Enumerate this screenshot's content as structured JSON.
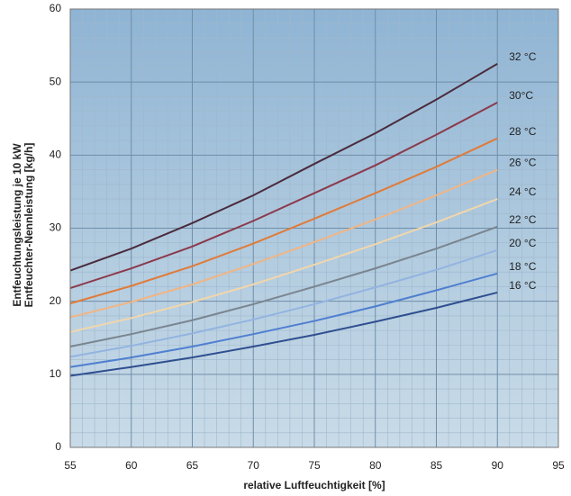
{
  "chart_data": {
    "type": "line",
    "x_label": "relative Luftfeuchtigkeit [%]",
    "y_label": [
      "Entfeuchtungsleistung je 10 kW",
      "Entfeuchter-Nennleistung [kg/h]"
    ],
    "x": [
      55,
      60,
      65,
      70,
      75,
      80,
      85,
      90
    ],
    "series": [
      {
        "name": "32 °C",
        "color": "#4a2b3c",
        "values": [
          24.2,
          27.2,
          30.7,
          34.5,
          38.8,
          43.0,
          47.6,
          52.5
        ]
      },
      {
        "name": "30°C",
        "color": "#8b3a4c",
        "values": [
          21.8,
          24.5,
          27.5,
          31.0,
          34.8,
          38.6,
          42.8,
          47.2
        ]
      },
      {
        "name": "28 °C",
        "color": "#e07b39",
        "values": [
          19.7,
          22.1,
          24.8,
          27.9,
          31.3,
          34.8,
          38.4,
          42.3
        ]
      },
      {
        "name": "26 °C",
        "color": "#f0b585",
        "values": [
          17.8,
          19.9,
          22.3,
          25.1,
          28.1,
          31.2,
          34.5,
          38.0
        ]
      },
      {
        "name": "24 °C",
        "color": "#f2d6ac",
        "values": [
          15.8,
          17.7,
          19.9,
          22.3,
          25.0,
          27.8,
          30.8,
          34.0
        ]
      },
      {
        "name": "22 °C",
        "color": "#7a8590",
        "values": [
          13.8,
          15.5,
          17.4,
          19.6,
          22.0,
          24.5,
          27.2,
          30.2
        ]
      },
      {
        "name": "20 °C",
        "color": "#93b4e0",
        "values": [
          12.4,
          13.9,
          15.6,
          17.5,
          19.6,
          21.9,
          24.3,
          27.0
        ]
      },
      {
        "name": "18 °C",
        "color": "#4f7fd0",
        "values": [
          11.0,
          12.3,
          13.8,
          15.5,
          17.3,
          19.3,
          21.5,
          23.8
        ]
      },
      {
        "name": "16 °C",
        "color": "#2f4f8f",
        "values": [
          9.8,
          11.0,
          12.3,
          13.8,
          15.4,
          17.2,
          19.1,
          21.2
        ]
      }
    ],
    "xlim": [
      55,
      95
    ],
    "xticks": [
      55,
      60,
      65,
      70,
      75,
      80,
      85,
      90,
      95
    ],
    "ylim": [
      0,
      60
    ],
    "yticks": [
      0,
      10,
      20,
      30,
      40,
      50,
      60
    ],
    "grid": true
  }
}
